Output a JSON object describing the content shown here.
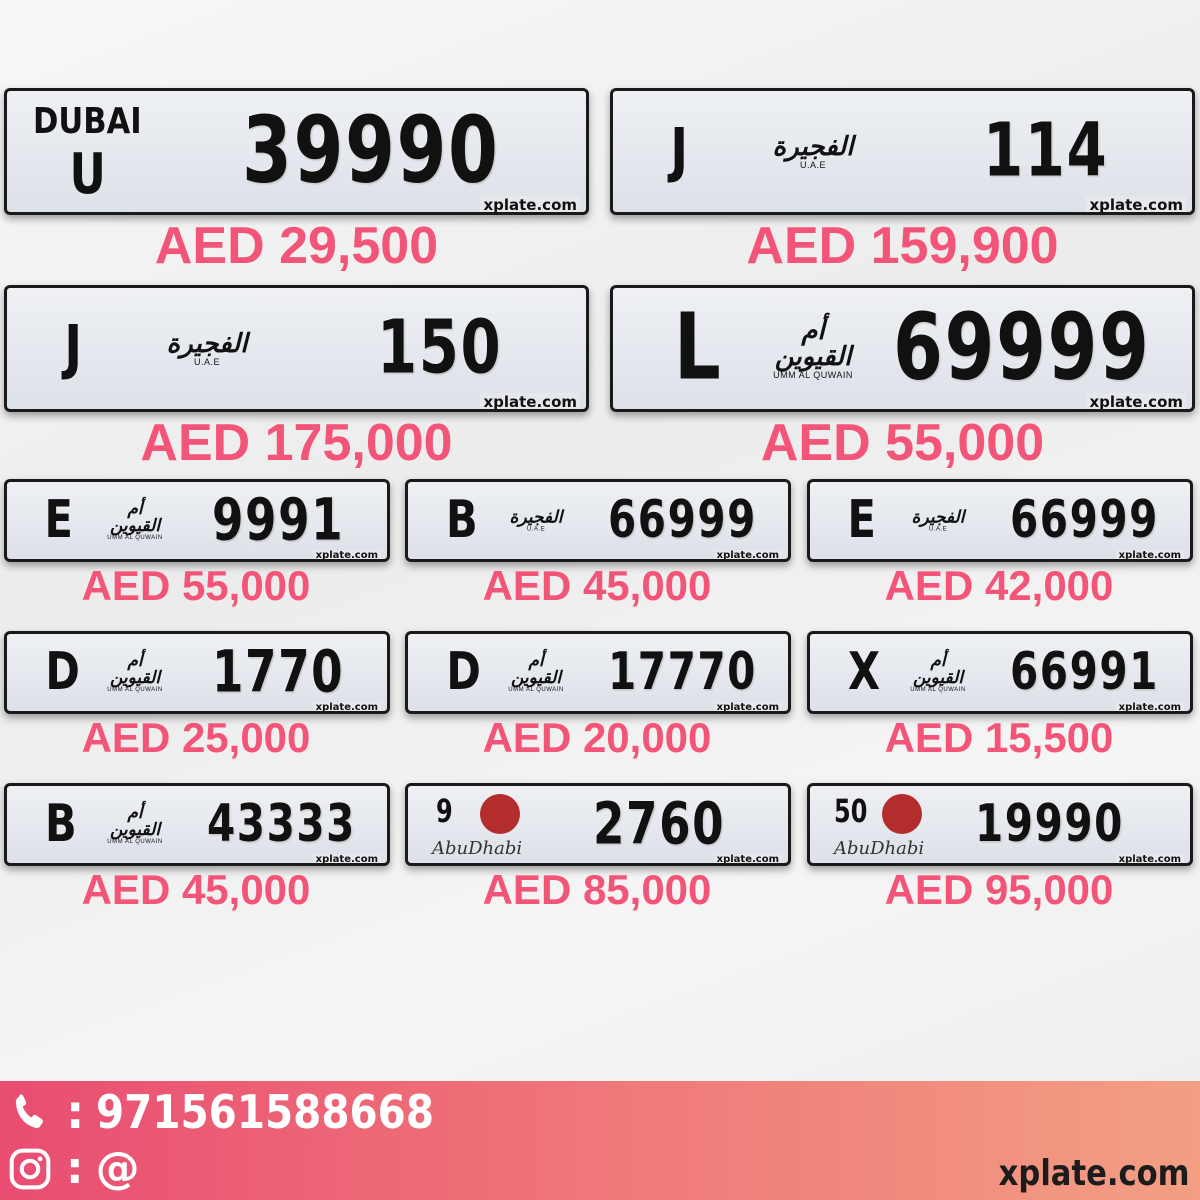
{
  "plates": [
    {
      "emirate": "dubai",
      "emblem": "DUBAI",
      "code": "U",
      "number": "39990",
      "watermark": "xplate.com",
      "price": "AED 29,500"
    },
    {
      "emirate": "fujairah",
      "emblem": "الفجيرة",
      "emblem_sub": "U.A.E",
      "code": "J",
      "number": "114",
      "watermark": "xplate.com",
      "price": "AED 159,900"
    },
    {
      "emirate": "fujairah",
      "emblem": "الفجيرة",
      "emblem_sub": "U.A.E",
      "code": "J",
      "number": "150",
      "watermark": "xplate.com",
      "price": "AED 175,000"
    },
    {
      "emirate": "umm-al-quwain",
      "emblem": "أم القيوين",
      "emblem_sub": "UMM AL QUWAIN",
      "code": "L",
      "number": "69999",
      "watermark": "xplate.com",
      "price": "AED 55,000"
    },
    {
      "emirate": "umm-al-quwain",
      "emblem": "أم القيوين",
      "emblem_sub": "UMM AL QUWAIN",
      "code": "E",
      "number": "9991",
      "watermark": "xplate.com",
      "price": "AED 55,000"
    },
    {
      "emirate": "fujairah",
      "emblem": "الفجيرة",
      "emblem_sub": "U.A.E",
      "code": "B",
      "number": "66999",
      "watermark": "xplate.com",
      "price": "AED 45,000"
    },
    {
      "emirate": "fujairah",
      "emblem": "الفجيرة",
      "emblem_sub": "U.A.E",
      "code": "E",
      "number": "66999",
      "watermark": "xplate.com",
      "price": "AED 42,000"
    },
    {
      "emirate": "umm-al-quwain",
      "emblem": "أم القيوين",
      "emblem_sub": "UMM AL QUWAIN",
      "code": "D",
      "number": "1770",
      "watermark": "xplate.com",
      "price": "AED 25,000"
    },
    {
      "emirate": "umm-al-quwain",
      "emblem": "أم القيوين",
      "emblem_sub": "UMM AL QUWAIN",
      "code": "D",
      "number": "17770",
      "watermark": "xplate.com",
      "price": "AED 20,000"
    },
    {
      "emirate": "umm-al-quwain",
      "emblem": "أم القيوين",
      "emblem_sub": "UMM AL QUWAIN",
      "code": "X",
      "number": "66991",
      "watermark": "xplate.com",
      "price": "AED 15,500"
    },
    {
      "emirate": "umm-al-quwain",
      "emblem": "أم القيوين",
      "emblem_sub": "UMM AL QUWAIN",
      "code": "B",
      "number": "43333",
      "watermark": "xplate.com",
      "price": "AED 45,000"
    },
    {
      "emirate": "abu-dhabi",
      "emblem": "AbuDhabi",
      "code": "9",
      "number": "2760",
      "watermark": "xplate.com",
      "price": "AED 85,000"
    },
    {
      "emirate": "abu-dhabi",
      "emblem": "AbuDhabi",
      "code": "50",
      "number": "19990",
      "watermark": "xplate.com",
      "price": "AED 95,000"
    }
  ],
  "footer": {
    "phone_sep": ":",
    "phone": "971561588668",
    "insta_sep": ":",
    "insta": "@",
    "site": "xplate.com"
  },
  "colors": {
    "price": "#f25577",
    "footer_start": "#e94d72",
    "footer_end": "#f29f83"
  }
}
